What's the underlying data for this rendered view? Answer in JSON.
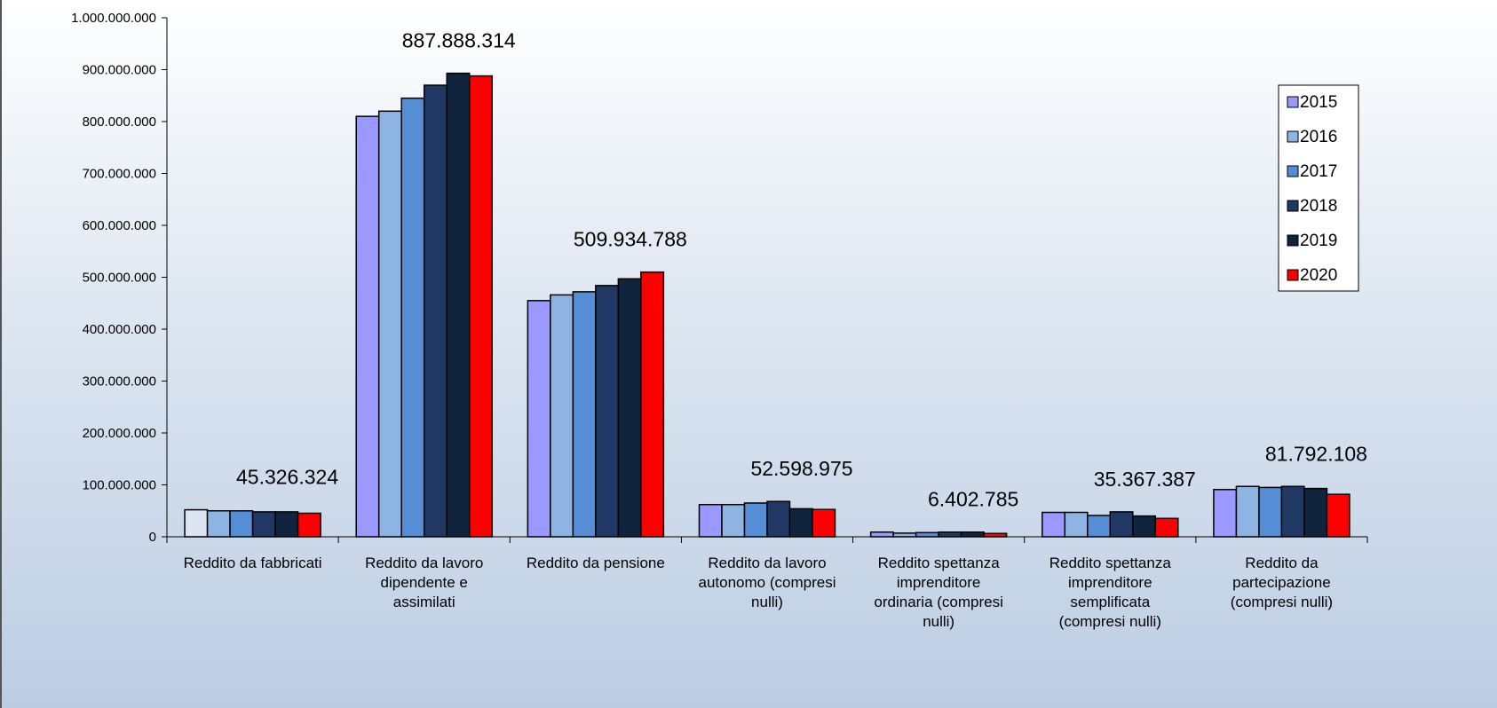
{
  "chart_data": {
    "type": "bar",
    "title": "",
    "xlabel": "",
    "ylabel": "",
    "ylim": [
      0,
      1000000000
    ],
    "yticks": [
      0,
      100000000,
      200000000,
      300000000,
      400000000,
      500000000,
      600000000,
      700000000,
      800000000,
      900000000,
      1000000000
    ],
    "ytick_labels": [
      "0",
      "100.000.000",
      "200.000.000",
      "300.000.000",
      "400.000.000",
      "500.000.000",
      "600.000.000",
      "700.000.000",
      "800.000.000",
      "900.000.000",
      "1.000.000.000"
    ],
    "grid": false,
    "legend_position": "right",
    "categories": [
      [
        "Reddito da fabbricati"
      ],
      [
        "Reddito da lavoro",
        "dipendente e",
        "assimilati"
      ],
      [
        "Reddito da pensione"
      ],
      [
        "Reddito da lavoro",
        "autonomo (compresi",
        "nulli)"
      ],
      [
        "Reddito spettanza",
        "imprenditore",
        "ordinaria  (compresi",
        "nulli)"
      ],
      [
        "Reddito spettanza",
        "imprenditore",
        "semplificata",
        "(compresi nulli)"
      ],
      [
        "Reddito da",
        "partecipazione",
        "(compresi nulli)"
      ]
    ],
    "series": [
      {
        "name": "2015",
        "color": "#9999ff",
        "values": [
          52000000,
          810000000,
          455000000,
          62000000,
          9000000,
          47000000,
          91000000
        ]
      },
      {
        "name": "2016",
        "color": "#8eb4e3",
        "values": [
          50000000,
          820000000,
          466000000,
          62000000,
          7000000,
          47000000,
          97000000
        ]
      },
      {
        "name": "2017",
        "color": "#558ed5",
        "values": [
          50000000,
          845000000,
          472000000,
          65000000,
          8000000,
          41000000,
          95000000
        ]
      },
      {
        "name": "2018",
        "color": "#1f3864",
        "values": [
          48000000,
          870000000,
          484000000,
          68000000,
          9000000,
          48000000,
          97000000
        ]
      },
      {
        "name": "2019",
        "color": "#10243e",
        "values": [
          48000000,
          893000000,
          497000000,
          54000000,
          9000000,
          40000000,
          93000000
        ]
      },
      {
        "name": "2020",
        "color": "#ff0000",
        "values": [
          45326324,
          887888314,
          509934788,
          52598975,
          6402785,
          35367387,
          81792108
        ]
      }
    ],
    "first_bar_color_override": "#dce6f2",
    "data_labels": [
      "45.326.324",
      "887.888.314",
      "509.934.788",
      "52.598.975",
      "6.402.785",
      "35.367.387",
      "81.792.108"
    ]
  }
}
